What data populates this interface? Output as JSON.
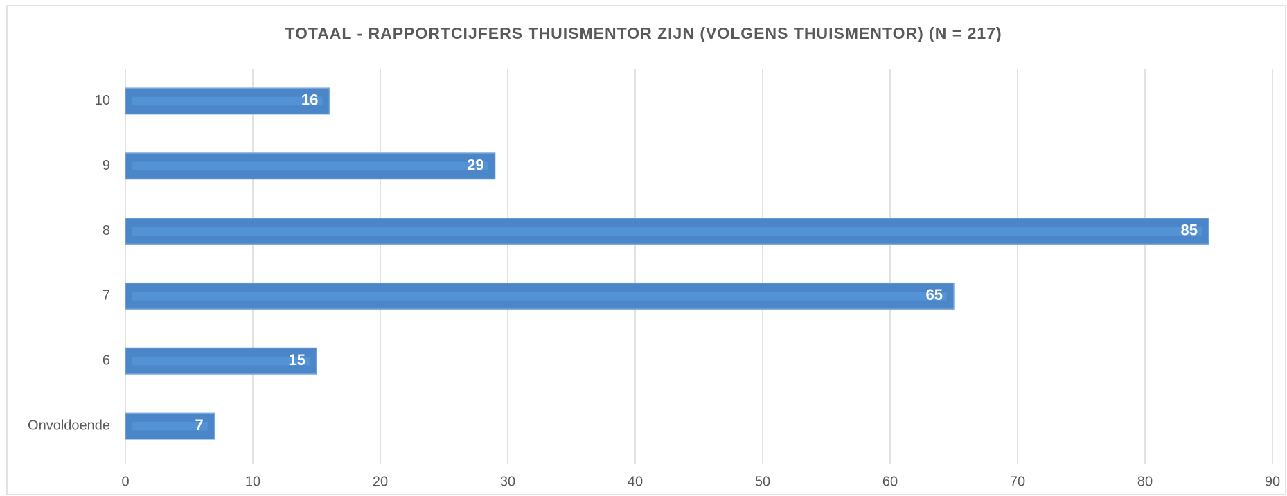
{
  "chart_data": {
    "type": "bar",
    "orientation": "horizontal",
    "title": "TOTAAL - RAPPORTCIJFERS THUISMENTOR ZIJN (VOLGENS THUISMENTOR) (N = 217)",
    "categories": [
      "10",
      "9",
      "8",
      "7",
      "6",
      "Onvoldoende"
    ],
    "values": [
      16,
      29,
      85,
      65,
      15,
      7
    ],
    "color": "#4a86c8",
    "xlim": [
      0,
      90
    ],
    "xticks": [
      0,
      10,
      20,
      30,
      40,
      50,
      60,
      70,
      80,
      90
    ],
    "grid": true
  }
}
